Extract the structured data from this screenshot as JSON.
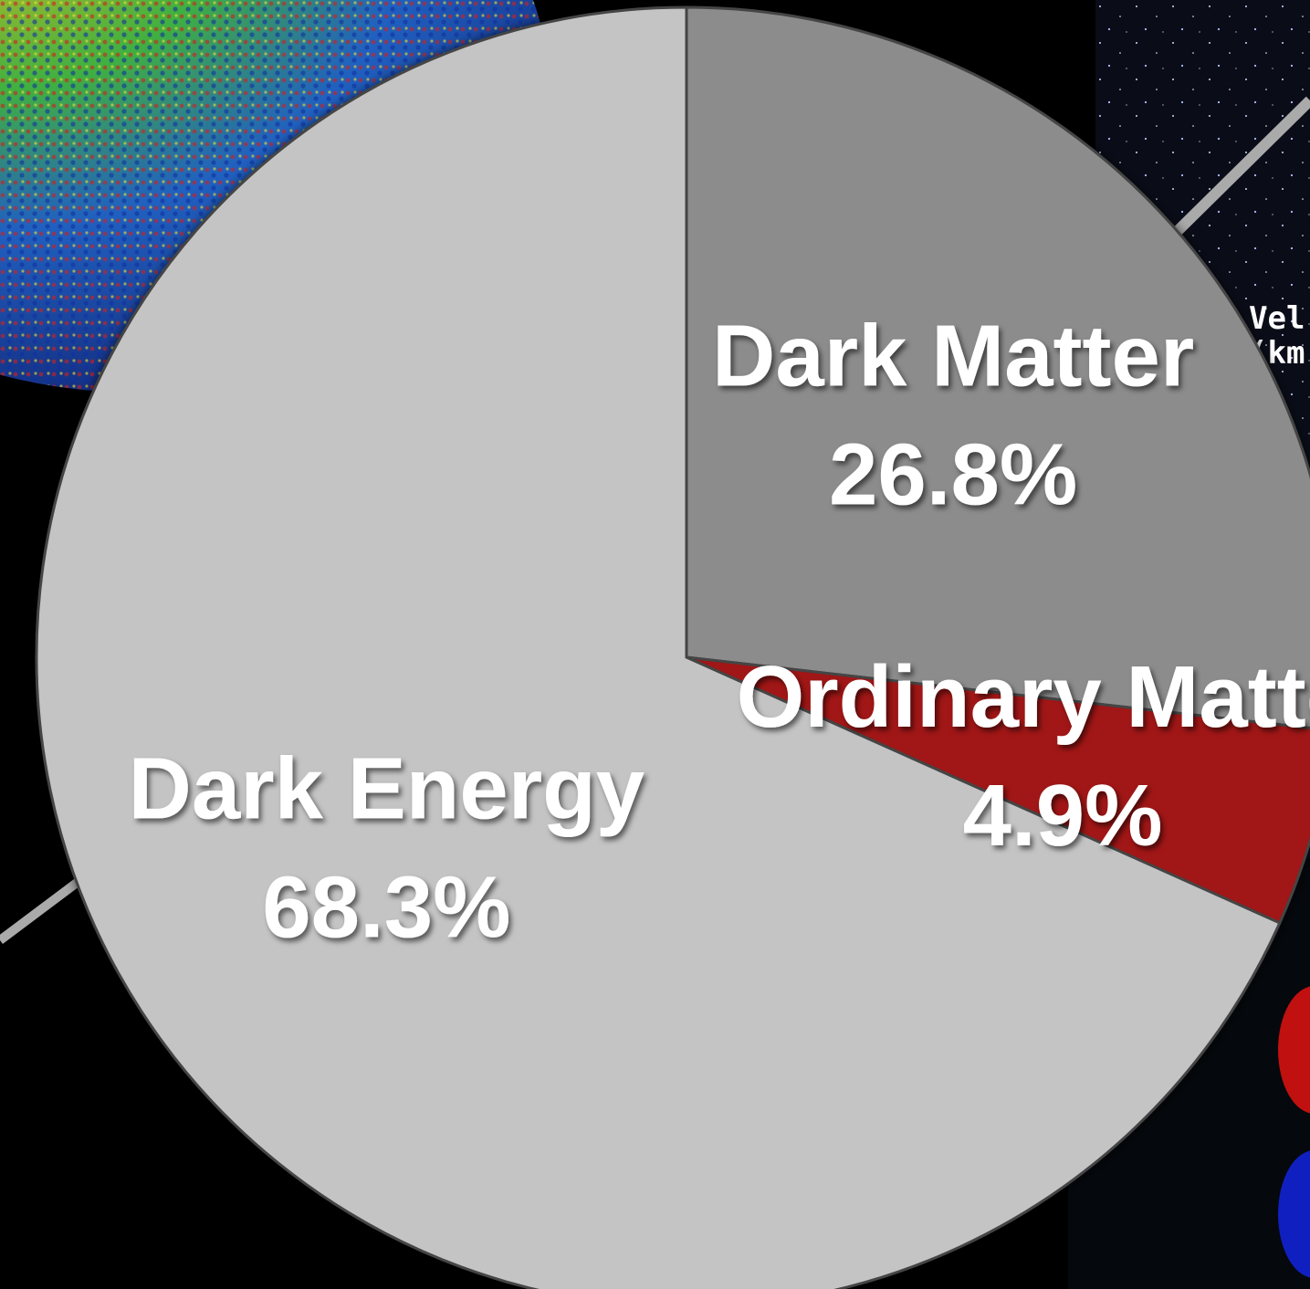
{
  "chart_data": {
    "type": "pie",
    "categories": [
      "Dark Matter",
      "Ordinary Matter",
      "Dark Energy"
    ],
    "values": [
      26.8,
      4.9,
      68.3
    ],
    "value_labels": [
      "26.8%",
      "4.9%",
      "68.3%"
    ],
    "colors": [
      "#8c8c8c",
      "#a11212",
      "#c4c4c4"
    ],
    "annotations": [
      "Vel",
      "(km"
    ]
  }
}
